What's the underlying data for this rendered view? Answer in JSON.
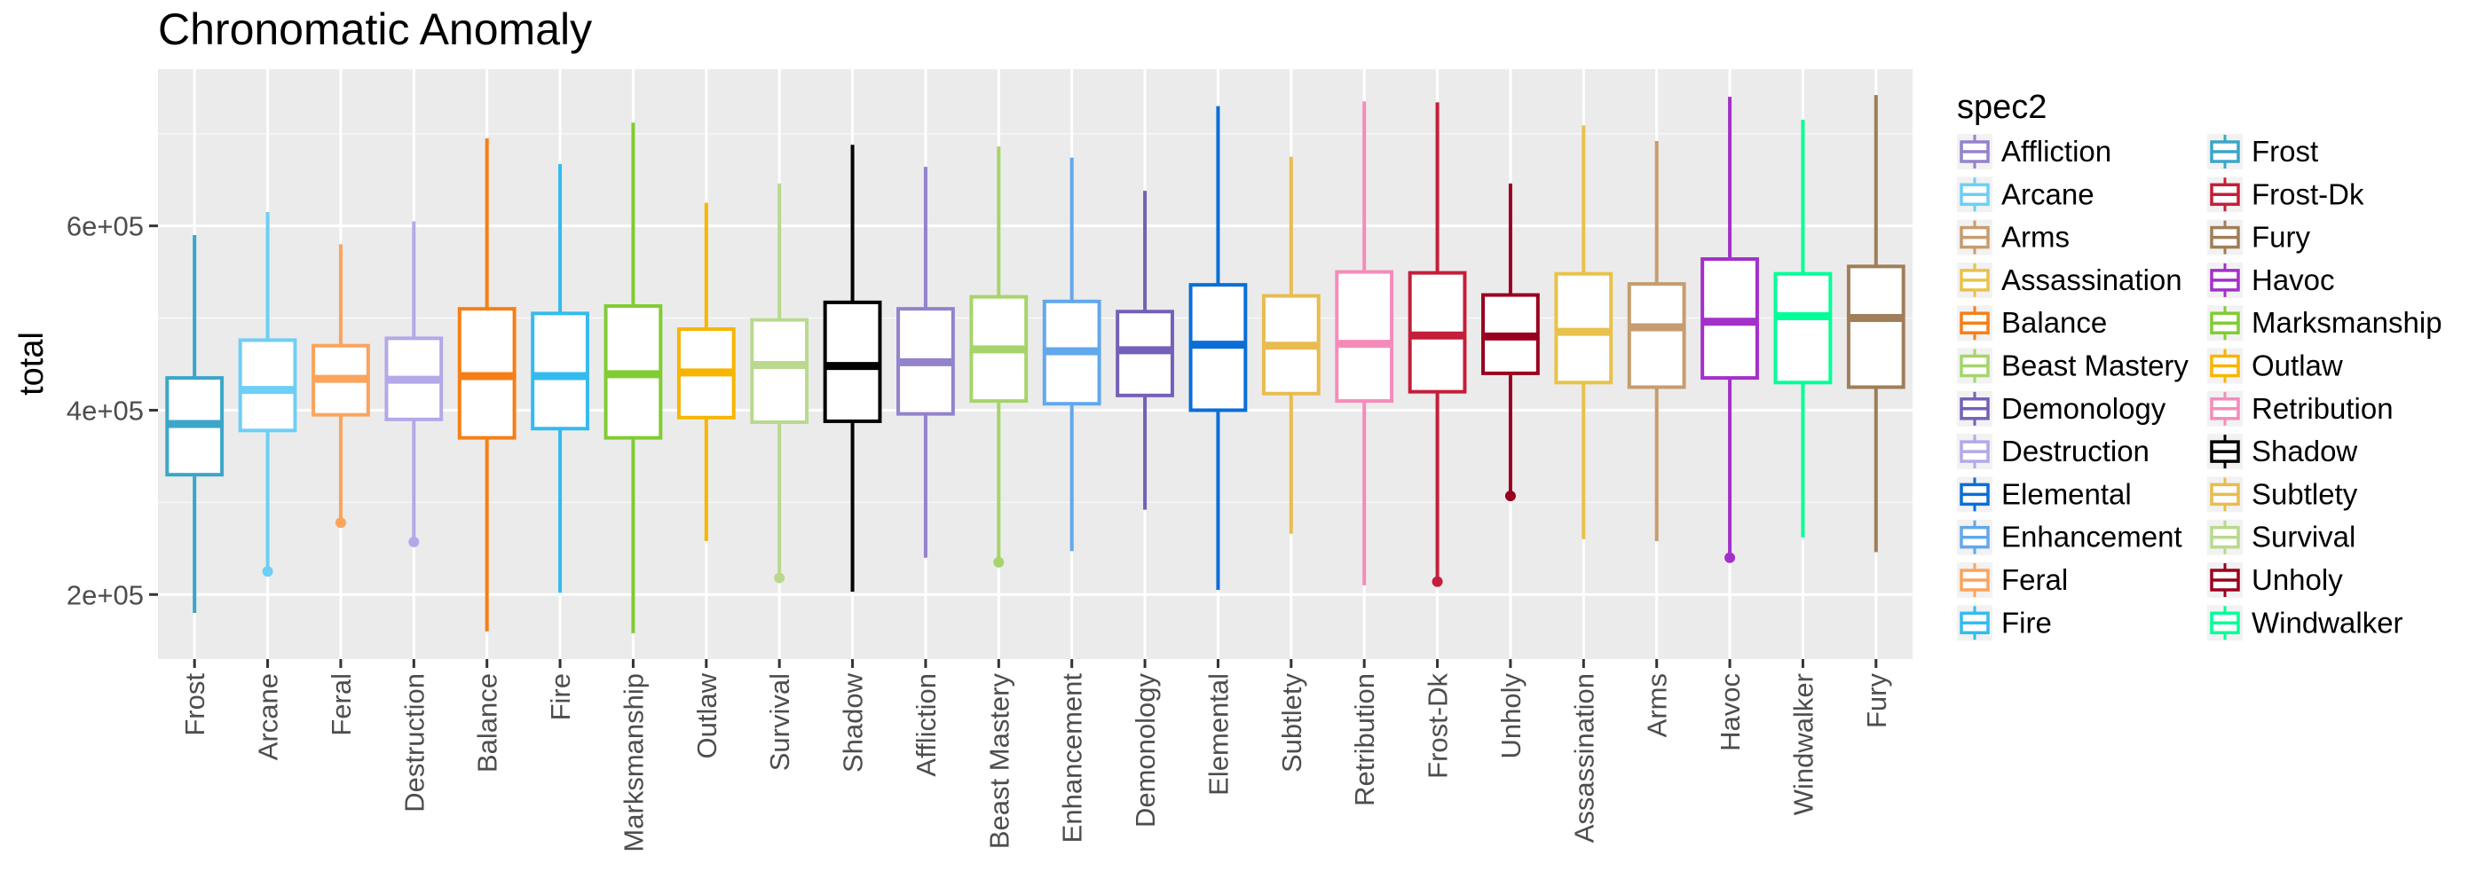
{
  "chart_data": {
    "type": "boxplot",
    "title": "Chronomatic Anomaly",
    "xlabel": "",
    "ylabel": "total",
    "ylim": [
      130000,
      770000
    ],
    "yticks": [
      200000,
      400000,
      600000
    ],
    "ytick_labels": [
      "2e+05",
      "4e+05",
      "6e+05"
    ],
    "grid": true,
    "legend": {
      "title": "spec2",
      "position": "right",
      "columns": 2
    },
    "legend_order": [
      "Affliction",
      "Arcane",
      "Arms",
      "Assassination",
      "Balance",
      "Beast Mastery",
      "Demonology",
      "Destruction",
      "Elemental",
      "Enhancement",
      "Feral",
      "Fire",
      "Frost",
      "Frost-Dk",
      "Fury",
      "Havoc",
      "Marksmanship",
      "Outlaw",
      "Retribution",
      "Shadow",
      "Subtlety",
      "Survival",
      "Unholy",
      "Windwalker"
    ],
    "categories": [
      "Frost",
      "Arcane",
      "Feral",
      "Destruction",
      "Balance",
      "Fire",
      "Marksmanship",
      "Outlaw",
      "Survival",
      "Shadow",
      "Affliction",
      "Beast Mastery",
      "Enhancement",
      "Demonology",
      "Elemental",
      "Subtlety",
      "Retribution",
      "Frost-Dk",
      "Unholy",
      "Assassination",
      "Arms",
      "Havoc",
      "Windwalker",
      "Fury"
    ],
    "series": [
      {
        "name": "Frost",
        "color": "#3aa6c8",
        "min": 180000,
        "q1": 330000,
        "median": 385000,
        "q3": 435000,
        "max": 590000,
        "outliers": []
      },
      {
        "name": "Arcane",
        "color": "#6ccff6",
        "min": 228000,
        "q1": 378000,
        "median": 422000,
        "q3": 476000,
        "max": 615000,
        "outliers": [
          225000
        ]
      },
      {
        "name": "Feral",
        "color": "#fba45c",
        "min": 282000,
        "q1": 395000,
        "median": 434000,
        "q3": 470000,
        "max": 580000,
        "outliers": [
          278000
        ]
      },
      {
        "name": "Destruction",
        "color": "#b5a8e8",
        "min": 262000,
        "q1": 390000,
        "median": 433000,
        "q3": 478000,
        "max": 605000,
        "outliers": [
          257000
        ]
      },
      {
        "name": "Balance",
        "color": "#f57f17",
        "min": 160000,
        "q1": 370000,
        "median": 437000,
        "q3": 510000,
        "max": 695000,
        "outliers": []
      },
      {
        "name": "Fire",
        "color": "#33bbee",
        "min": 202000,
        "q1": 380000,
        "median": 437000,
        "q3": 505000,
        "max": 667000,
        "outliers": []
      },
      {
        "name": "Marksmanship",
        "color": "#80cc33",
        "min": 158000,
        "q1": 370000,
        "median": 439000,
        "q3": 513000,
        "max": 712000,
        "outliers": []
      },
      {
        "name": "Outlaw",
        "color": "#f7b500",
        "min": 258000,
        "q1": 392000,
        "median": 441000,
        "q3": 488000,
        "max": 625000,
        "outliers": []
      },
      {
        "name": "Survival",
        "color": "#b8d98e",
        "min": 222000,
        "q1": 387000,
        "median": 449000,
        "q3": 498000,
        "max": 646000,
        "outliers": [
          218000
        ]
      },
      {
        "name": "Shadow",
        "color": "#000000",
        "min": 203000,
        "q1": 388000,
        "median": 448000,
        "q3": 517000,
        "max": 688000,
        "outliers": []
      },
      {
        "name": "Affliction",
        "color": "#9482cc",
        "min": 240000,
        "q1": 396000,
        "median": 452000,
        "q3": 510000,
        "max": 664000,
        "outliers": []
      },
      {
        "name": "Beast Mastery",
        "color": "#a6d46a",
        "min": 238000,
        "q1": 410000,
        "median": 466000,
        "q3": 523000,
        "max": 686000,
        "outliers": [
          235000
        ]
      },
      {
        "name": "Enhancement",
        "color": "#62a8ec",
        "min": 247000,
        "q1": 407000,
        "median": 464000,
        "q3": 518000,
        "max": 674000,
        "outliers": []
      },
      {
        "name": "Demonology",
        "color": "#7460b8",
        "min": 292000,
        "q1": 416000,
        "median": 465000,
        "q3": 507000,
        "max": 638000,
        "outliers": []
      },
      {
        "name": "Elemental",
        "color": "#0a6ed6",
        "min": 205000,
        "q1": 400000,
        "median": 471000,
        "q3": 536000,
        "max": 730000,
        "outliers": []
      },
      {
        "name": "Subtlety",
        "color": "#e8bc50",
        "min": 266000,
        "q1": 418000,
        "median": 470000,
        "q3": 524000,
        "max": 675000,
        "outliers": []
      },
      {
        "name": "Retribution",
        "color": "#f48cba",
        "min": 210000,
        "q1": 410000,
        "median": 472000,
        "q3": 550000,
        "max": 735000,
        "outliers": []
      },
      {
        "name": "Frost-Dk",
        "color": "#c41e3a",
        "min": 218000,
        "q1": 420000,
        "median": 481000,
        "q3": 549000,
        "max": 734000,
        "outliers": [
          214000
        ]
      },
      {
        "name": "Unholy",
        "color": "#99001f",
        "min": 310000,
        "q1": 440000,
        "median": 480000,
        "q3": 525000,
        "max": 646000,
        "outliers": [
          307000
        ]
      },
      {
        "name": "Assassination",
        "color": "#e8c24a",
        "min": 260000,
        "q1": 430000,
        "median": 485000,
        "q3": 548000,
        "max": 709000,
        "outliers": []
      },
      {
        "name": "Arms",
        "color": "#c79c6e",
        "min": 258000,
        "q1": 425000,
        "median": 490000,
        "q3": 537000,
        "max": 692000,
        "outliers": []
      },
      {
        "name": "Havoc",
        "color": "#a330c9",
        "min": 243000,
        "q1": 435000,
        "median": 496000,
        "q3": 564000,
        "max": 740000,
        "outliers": [
          240000
        ]
      },
      {
        "name": "Windwalker",
        "color": "#00ff96",
        "min": 262000,
        "q1": 430000,
        "median": 502000,
        "q3": 548000,
        "max": 715000,
        "outliers": []
      },
      {
        "name": "Fury",
        "color": "#a07e58",
        "min": 246000,
        "q1": 425000,
        "median": 500000,
        "q3": 556000,
        "max": 742000,
        "outliers": []
      }
    ]
  }
}
